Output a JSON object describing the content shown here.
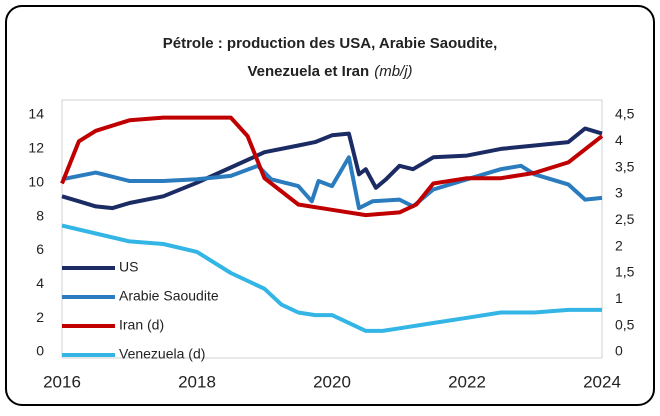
{
  "chart_data": {
    "type": "line",
    "title": [
      "Pétrole : production des USA, Arabie Saoudite,",
      "Venezuela et Iran"
    ],
    "title_unit": "(mb/j)",
    "xlim": [
      2016,
      2024
    ],
    "xticks": [
      2016,
      2018,
      2020,
      2022,
      2024
    ],
    "ylim": [
      0,
      14
    ],
    "yticks": [
      0,
      2,
      4,
      6,
      8,
      10,
      12,
      14
    ],
    "y2lim": [
      0,
      4.5
    ],
    "y2ticks": [
      0,
      {
        "value": 0.5,
        "label": "0,5"
      },
      1,
      {
        "value": 1.5,
        "label": "1,5"
      },
      2,
      {
        "value": 2.5,
        "label": "2,5"
      },
      3,
      {
        "value": 3.5,
        "label": "3,5"
      },
      4,
      {
        "value": 4.5,
        "label": "4,5"
      }
    ],
    "legend": "left",
    "series": [
      {
        "name": "US",
        "color": "#1b2b63",
        "axis": "y",
        "x": [
          2016,
          2016.25,
          2016.5,
          2016.75,
          2017,
          2017.5,
          2018,
          2018.5,
          2019,
          2019.5,
          2019.75,
          2020,
          2020.25,
          2020.4,
          2020.5,
          2020.65,
          2020.8,
          2021,
          2021.2,
          2021.5,
          2022,
          2022.5,
          2023,
          2023.5,
          2023.75,
          2024
        ],
        "values": [
          9.2,
          8.9,
          8.6,
          8.5,
          8.8,
          9.2,
          10.0,
          10.9,
          11.8,
          12.2,
          12.4,
          12.8,
          12.9,
          10.5,
          10.8,
          9.7,
          10.2,
          11.0,
          10.8,
          11.5,
          11.6,
          12.0,
          12.2,
          12.4,
          13.2,
          12.9
        ]
      },
      {
        "name": "Arabie Saoudite",
        "color": "#2b7bbf",
        "axis": "y",
        "x": [
          2016,
          2016.5,
          2017,
          2017.5,
          2018,
          2018.5,
          2018.9,
          2019.1,
          2019.5,
          2019.7,
          2019.8,
          2020,
          2020.25,
          2020.4,
          2020.6,
          2021,
          2021.2,
          2021.5,
          2022,
          2022.5,
          2022.8,
          2023,
          2023.5,
          2023.75,
          2024
        ],
        "values": [
          10.2,
          10.6,
          10.1,
          10.1,
          10.2,
          10.4,
          11.0,
          10.2,
          9.8,
          8.9,
          10.1,
          9.8,
          11.5,
          8.5,
          8.9,
          9.0,
          8.6,
          9.6,
          10.2,
          10.8,
          11.0,
          10.5,
          9.9,
          9.0,
          9.1
        ]
      },
      {
        "name": "Iran (d)",
        "color": "#c00000",
        "axis": "y2",
        "x": [
          2016,
          2016.25,
          2016.5,
          2017,
          2017.5,
          2018,
          2018.5,
          2018.75,
          2019,
          2019.5,
          2020,
          2020.5,
          2021,
          2021.25,
          2021.5,
          2022,
          2022.5,
          2023,
          2023.5,
          2024
        ],
        "values": [
          3.2,
          4.0,
          4.2,
          4.4,
          4.45,
          4.45,
          4.45,
          4.1,
          3.3,
          2.8,
          2.7,
          2.6,
          2.65,
          2.8,
          3.2,
          3.3,
          3.3,
          3.4,
          3.6,
          4.1
        ]
      },
      {
        "name": "Venezuela (d)",
        "color": "#33b5e5",
        "axis": "y2",
        "x": [
          2016,
          2016.5,
          2017,
          2017.5,
          2018,
          2018.5,
          2019,
          2019.25,
          2019.5,
          2019.75,
          2020,
          2020.5,
          2020.75,
          2021,
          2021.5,
          2022,
          2022.5,
          2023,
          2023.5,
          2024
        ],
        "values": [
          2.4,
          2.25,
          2.1,
          2.05,
          1.9,
          1.5,
          1.2,
          0.9,
          0.75,
          0.7,
          0.7,
          0.4,
          0.4,
          0.45,
          0.55,
          0.65,
          0.75,
          0.75,
          0.8,
          0.8
        ]
      }
    ]
  }
}
